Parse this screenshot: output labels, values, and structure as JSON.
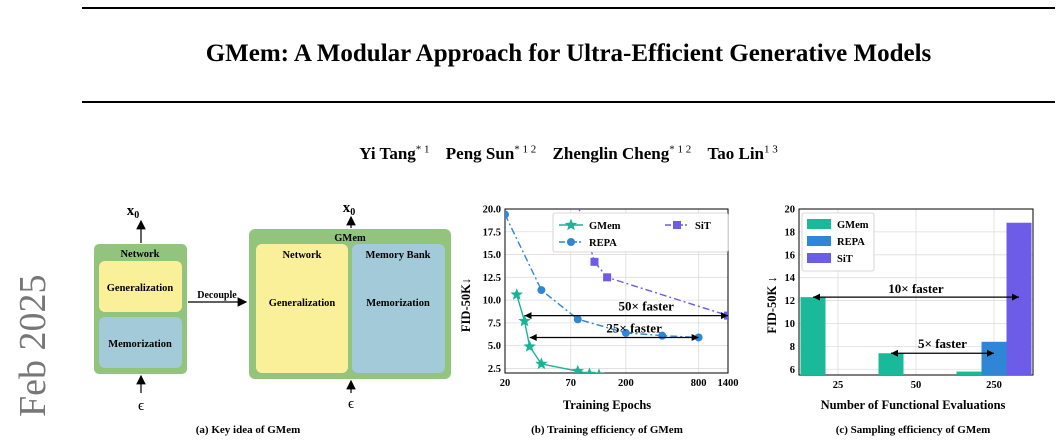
{
  "paper": {
    "title": "GMem: A Modular Approach for Ultra-Efficient Generative Models",
    "authors": [
      {
        "name": "Yi Tang",
        "aff": "* 1"
      },
      {
        "name": "Peng Sun",
        "aff": "* 1 2"
      },
      {
        "name": "Zhenglin Cheng",
        "aff": "* 1 2"
      },
      {
        "name": "Tao Lin",
        "aff": "1 3"
      }
    ],
    "arxiv_date": "Feb 2025"
  },
  "diagram": {
    "output_label": "x",
    "output_sub": "0",
    "input_label": "ϵ",
    "left_box": {
      "header": "Network",
      "top": "Generalization",
      "bottom": "Memorization"
    },
    "arrow_label": "Decouple",
    "right_box": {
      "header": "GMem",
      "left_title": "Network",
      "left_body": "Generalization",
      "right_title": "Memory Bank",
      "right_body": "Memorization"
    },
    "caption": "(a) Key idea of GMem",
    "colors": {
      "outer": "#93c47d",
      "yellow": "#fbf09a",
      "blue": "#a3cad8"
    }
  },
  "chart_data": [
    {
      "type": "line",
      "caption": "(b) Training efficiency of GMem",
      "xlabel": "Training Epochs",
      "ylabel": "FID-50K↓",
      "x_scale": "log",
      "xlim": [
        20,
        1400
      ],
      "ylim": [
        2,
        20
      ],
      "x_ticks": [
        "20",
        "70",
        "200",
        "800",
        "1400"
      ],
      "x_tick_values": [
        20,
        70,
        200,
        800,
        1400
      ],
      "y_ticks": [
        "2.5",
        "5.0",
        "7.5",
        "10.0",
        "12.5",
        "15.0",
        "17.5",
        "20.0"
      ],
      "y_tick_values": [
        2.5,
        5.0,
        7.5,
        10.0,
        12.5,
        15.0,
        17.5,
        20.0
      ],
      "grid": true,
      "legend": "top-right",
      "series": [
        {
          "name": "GMem",
          "marker": "star",
          "color": "#18b496",
          "dash": "solid",
          "x": [
            25,
            29,
            32,
            40,
            80,
            100,
            120
          ],
          "y": [
            10.6,
            7.7,
            4.9,
            3.0,
            2.2,
            1.9,
            1.8
          ]
        },
        {
          "name": "REPA",
          "marker": "circle",
          "color": "#2f86d6",
          "dash": "dashdot",
          "x": [
            20,
            40,
            80,
            200,
            400,
            800
          ],
          "y": [
            19.4,
            11.1,
            7.9,
            6.4,
            6.1,
            5.9
          ]
        },
        {
          "name": "SiT",
          "marker": "square",
          "color": "#6c5ce7",
          "dash": "dashdot",
          "x": [
            80,
            110,
            140,
            1400
          ],
          "y": [
            20.5,
            14.2,
            12.5,
            8.3
          ]
        }
      ],
      "annotations": [
        {
          "text": "50× faster",
          "y": 8.3,
          "x_from": 29,
          "x_to": 1400
        },
        {
          "text": "25× faster",
          "y": 5.9,
          "x_from": 32,
          "x_to": 800
        }
      ]
    },
    {
      "type": "bar",
      "caption": "(c) Sampling efficiency of GMem",
      "xlabel": "Number of Functional Evaluations",
      "ylabel": "FID-50K ↓",
      "categories": [
        "25",
        "50",
        "250"
      ],
      "ylim": [
        5.5,
        20
      ],
      "y_ticks": [
        "6",
        "8",
        "10",
        "12",
        "14",
        "16",
        "18",
        "20"
      ],
      "y_tick_values": [
        6,
        8,
        10,
        12,
        14,
        16,
        18,
        20
      ],
      "grid": true,
      "legend": "top-left",
      "series": [
        {
          "name": "GMem",
          "color": "#1ab99a",
          "values": [
            12.3,
            7.4,
            5.8
          ]
        },
        {
          "name": "REPA",
          "color": "#2f86d6",
          "values": [
            null,
            null,
            8.4
          ]
        },
        {
          "name": "SiT",
          "color": "#6c5ce7",
          "values": [
            null,
            null,
            18.8
          ]
        }
      ],
      "annotations": [
        {
          "text": "10× faster",
          "y": 12.3,
          "from": 0,
          "to": 2
        },
        {
          "text": "5× faster",
          "y": 7.4,
          "from": 1,
          "to": 2
        }
      ]
    }
  ]
}
